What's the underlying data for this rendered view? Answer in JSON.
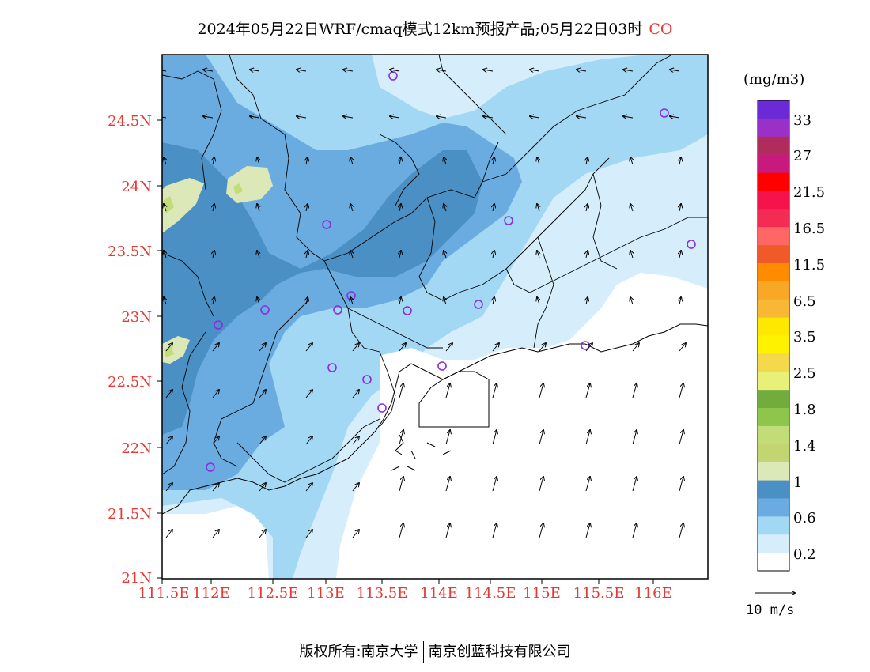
{
  "title": {
    "main": "2024年05月22日WRF/cmaq模式12km预报产品;05月22日03时",
    "species": "CO"
  },
  "axes": {
    "lat_labels": [
      "24.5N",
      "24N",
      "23.5N",
      "23N",
      "22.5N",
      "22N",
      "21.5N",
      "21N"
    ],
    "lon_labels": [
      "111.5E",
      "112E",
      "112.5E",
      "113E",
      "113.5E",
      "114E",
      "114.5E",
      "115E",
      "115.5E",
      "116E"
    ]
  },
  "legend": {
    "units": "(mg/m3)",
    "labels": [
      "33",
      "27",
      "21.5",
      "16.5",
      "11.5",
      "6.5",
      "3.5",
      "2.5",
      "1.8",
      "1.4",
      "1",
      "0.6",
      "0.2"
    ],
    "colors_top_to_bottom": [
      "#6a2bd6",
      "#9b30c8",
      "#b02c5c",
      "#c8197e",
      "#ff0000",
      "#f5134b",
      "#f42c54",
      "#ff6666",
      "#f05a28",
      "#ff8c00",
      "#f8a824",
      "#f8b735",
      "#ffe800",
      "#fff200",
      "#f4d94b",
      "#e8f07a",
      "#72ac3c",
      "#8dc64a",
      "#c2dd78",
      "#c3d573",
      "#dde8b8",
      "#4a90c4",
      "#6aace0",
      "#a3d8f5",
      "#d6eefb",
      "#ffffff"
    ]
  },
  "reference_vector": {
    "label": "10 m/s"
  },
  "footer": {
    "left": "版权所有:南京大学",
    "right": "南京创蓝科技有限公司"
  }
}
